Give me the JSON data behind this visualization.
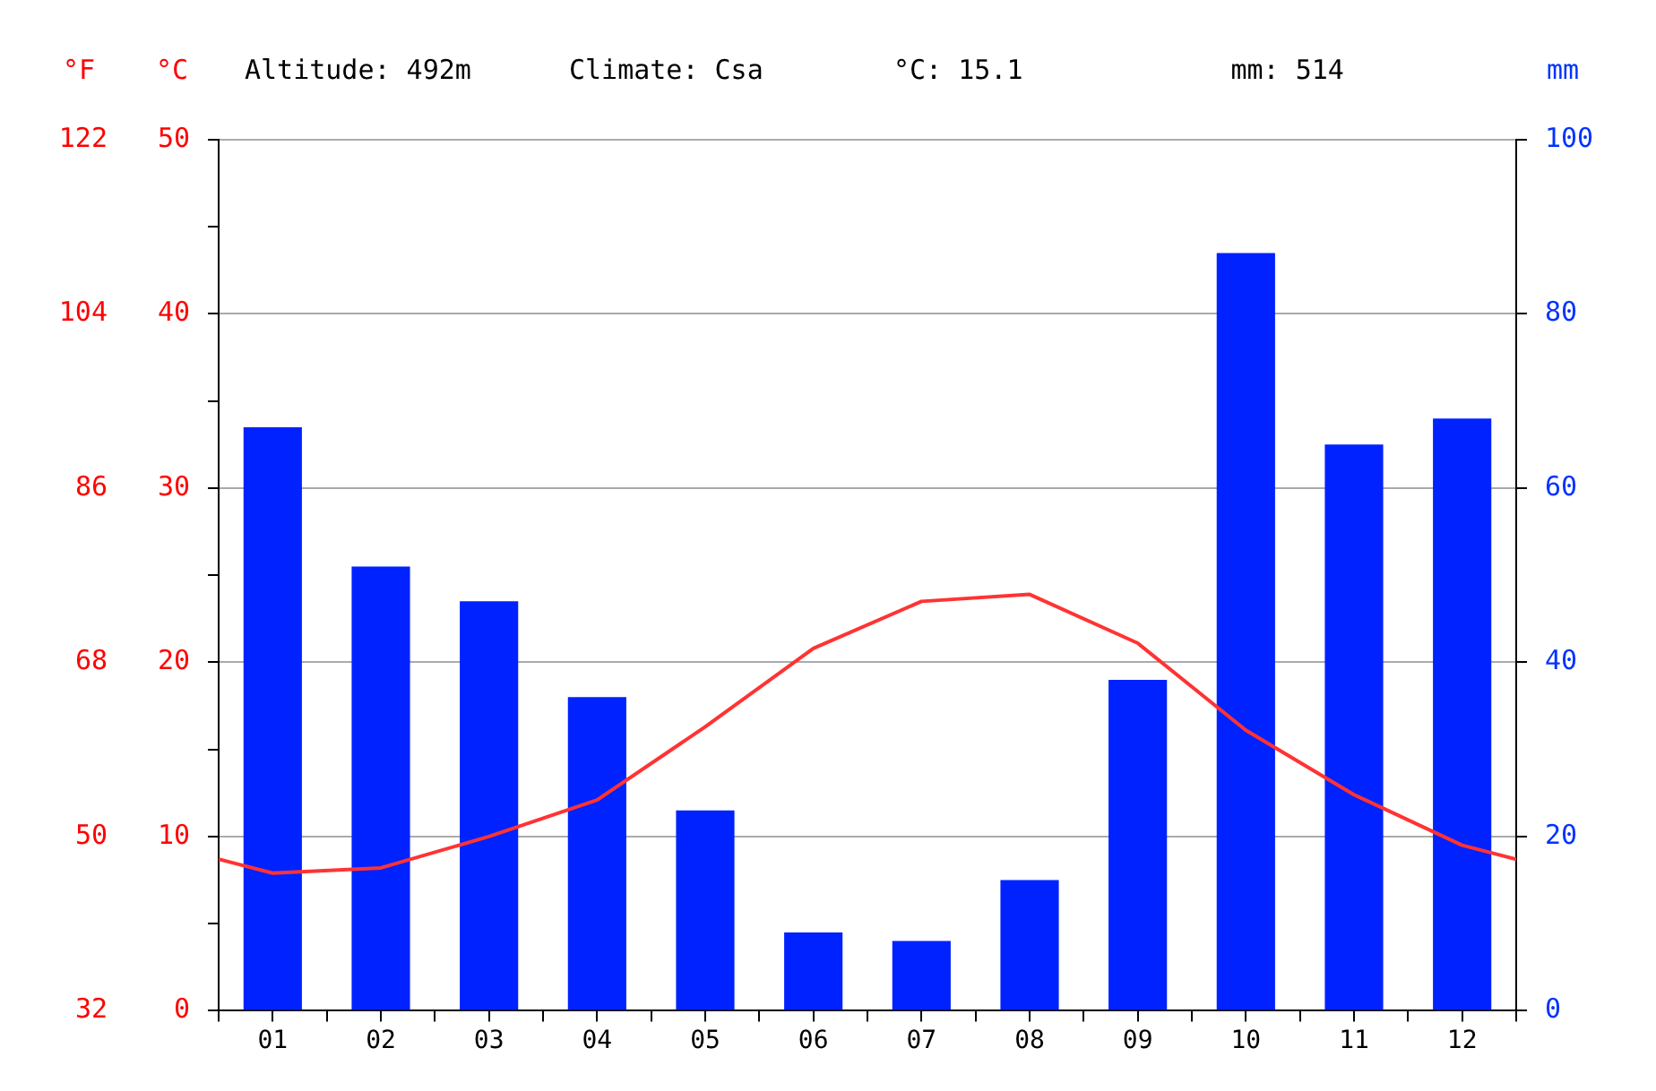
{
  "chart_data": {
    "type": "bar",
    "annotations": [
      "Altitude: 492m",
      "Climate: Csa",
      "°C: 15.1",
      "mm: 514"
    ],
    "ylabel": "°C",
    "y2label": "mm",
    "y3label": "°F",
    "xlim": [
      0.5,
      12.5
    ],
    "xticks": [
      {
        "value": 0.5,
        "label": null
      },
      {
        "value": 1,
        "label": "01"
      },
      {
        "value": 1.5,
        "label": null
      },
      {
        "value": 2,
        "label": "02"
      },
      {
        "value": 2.5,
        "label": null
      },
      {
        "value": 3,
        "label": "03"
      },
      {
        "value": 3.5,
        "label": null
      },
      {
        "value": 4,
        "label": "04"
      },
      {
        "value": 4.5,
        "label": null
      },
      {
        "value": 5,
        "label": "05"
      },
      {
        "value": 5.5,
        "label": null
      },
      {
        "value": 6,
        "label": "06"
      },
      {
        "value": 6.5,
        "label": null
      },
      {
        "value": 7,
        "label": "07"
      },
      {
        "value": 7.5,
        "label": null
      },
      {
        "value": 8,
        "label": "08"
      },
      {
        "value": 8.5,
        "label": null
      },
      {
        "value": 9,
        "label": "09"
      },
      {
        "value": 9.5,
        "label": null
      },
      {
        "value": 10,
        "label": "10"
      },
      {
        "value": 10.5,
        "label": null
      },
      {
        "value": 11,
        "label": "11"
      },
      {
        "value": 11.5,
        "label": null
      },
      {
        "value": 12,
        "label": "12"
      },
      {
        "value": 12.5,
        "label": null
      }
    ],
    "ylim": [
      0,
      50
    ],
    "yticks": [
      0,
      {
        "value": 5,
        "label": null
      },
      10,
      {
        "value": 15,
        "label": null
      },
      20,
      {
        "value": 25,
        "label": null
      },
      30,
      {
        "value": 35,
        "label": null
      },
      40,
      {
        "value": 45,
        "label": null
      },
      50
    ],
    "y2lim": [
      0,
      100
    ],
    "y2ticks": [
      0,
      20,
      40,
      60,
      80,
      100
    ],
    "y3lim": [
      32,
      122
    ],
    "y3ticks": [
      32,
      50,
      68,
      86,
      104,
      122
    ],
    "grid": "y",
    "legend": false,
    "series": [
      {
        "axis": "y2",
        "color": "#0022ff",
        "x": [
          1,
          2,
          3,
          4,
          5,
          6,
          7,
          8,
          9,
          10,
          11,
          12
        ],
        "values": [
          67,
          51,
          47,
          36,
          23,
          9,
          8,
          15,
          38,
          87,
          65,
          68
        ]
      },
      {
        "type": "line",
        "axis": "y",
        "color": "#ff3333",
        "x": [
          0.5,
          1,
          2,
          3,
          4,
          5,
          6,
          7,
          8,
          9,
          10,
          11,
          12,
          12.5
        ],
        "values": [
          8.7,
          7.9,
          8.2,
          10.0,
          12.1,
          16.3,
          20.8,
          23.5,
          23.9,
          21.1,
          16.1,
          12.4,
          9.5,
          8.7
        ]
      }
    ]
  }
}
